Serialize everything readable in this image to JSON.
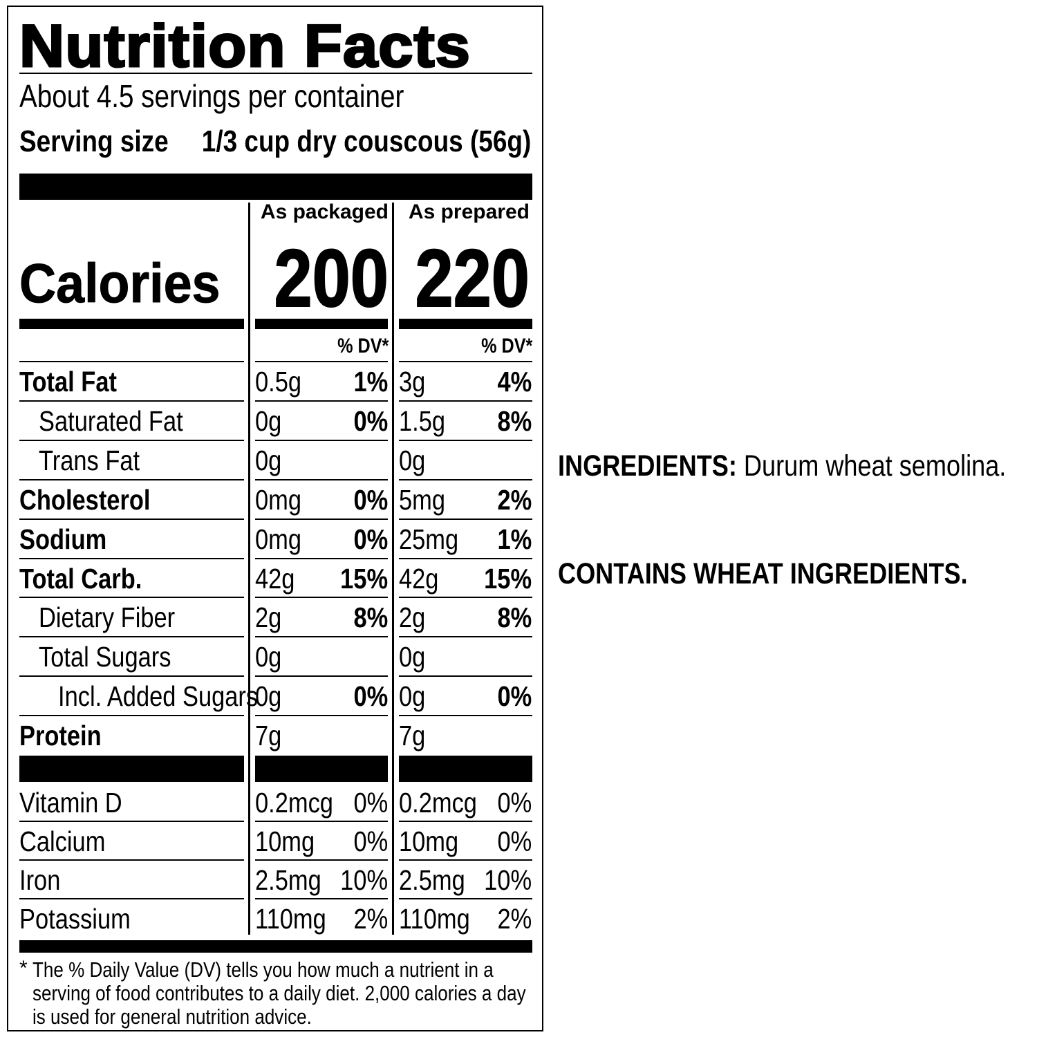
{
  "title": "Nutrition Facts",
  "servings": "About 4.5 servings per container",
  "serving_size": {
    "label": "Serving size",
    "value": "1/3 cup dry couscous (56g)"
  },
  "columns": [
    "As packaged",
    "As prepared"
  ],
  "calories": {
    "label": "Calories",
    "values": [
      "200",
      "220"
    ]
  },
  "dv_header": "% DV*",
  "nutrients": [
    {
      "name": "Total Fat",
      "packaged": {
        "amount": "0.5g",
        "dv": "1%"
      },
      "prepared": {
        "amount": "3g",
        "dv": "4%"
      }
    },
    {
      "name": "Saturated Fat",
      "packaged": {
        "amount": "0g",
        "dv": "0%"
      },
      "prepared": {
        "amount": "1.5g",
        "dv": "8%"
      }
    },
    {
      "name": "Trans Fat",
      "packaged": {
        "amount": "0g"
      },
      "prepared": {
        "amount": "0g"
      }
    },
    {
      "name": "Cholesterol",
      "packaged": {
        "amount": "0mg",
        "dv": "0%"
      },
      "prepared": {
        "amount": "5mg",
        "dv": "2%"
      }
    },
    {
      "name": "Sodium",
      "packaged": {
        "amount": "0mg",
        "dv": "0%"
      },
      "prepared": {
        "amount": "25mg",
        "dv": "1%"
      }
    },
    {
      "name": "Total Carb.",
      "packaged": {
        "amount": "42g",
        "dv": "15%"
      },
      "prepared": {
        "amount": "42g",
        "dv": "15%"
      }
    },
    {
      "name": "Dietary Fiber",
      "packaged": {
        "amount": "2g",
        "dv": "8%"
      },
      "prepared": {
        "amount": "2g",
        "dv": "8%"
      }
    },
    {
      "name": "Total Sugars",
      "packaged": {
        "amount": "0g"
      },
      "prepared": {
        "amount": "0g"
      }
    },
    {
      "name": "Incl. Added Sugars",
      "packaged": {
        "amount": "0g",
        "dv": "0%"
      },
      "prepared": {
        "amount": "0g",
        "dv": "0%"
      }
    },
    {
      "name": "Protein",
      "packaged": {
        "amount": "7g"
      },
      "prepared": {
        "amount": "7g"
      }
    }
  ],
  "vitamins": [
    {
      "name": "Vitamin D",
      "packaged": {
        "amount": "0.2mcg",
        "dv": "0%"
      },
      "prepared": {
        "amount": "0.2mcg",
        "dv": "0%"
      }
    },
    {
      "name": "Calcium",
      "packaged": {
        "amount": "10mg",
        "dv": "0%"
      },
      "prepared": {
        "amount": "10mg",
        "dv": "0%"
      }
    },
    {
      "name": "Iron",
      "packaged": {
        "amount": "2.5mg",
        "dv": "10%"
      },
      "prepared": {
        "amount": "2.5mg",
        "dv": "10%"
      }
    },
    {
      "name": "Potassium",
      "packaged": {
        "amount": "110mg",
        "dv": "2%"
      },
      "prepared": {
        "amount": "110mg",
        "dv": "2%"
      }
    }
  ],
  "footnote_mark": "*",
  "footnote": "The % Daily Value (DV) tells you how much a nutrient in a serving of food contributes to a daily diet. 2,000 calories a day is used for general nutrition advice.",
  "ingredients": {
    "label": "INGREDIENTS:",
    "text": "Durum wheat semolina."
  },
  "allergen": "CONTAINS WHEAT INGREDIENTS."
}
